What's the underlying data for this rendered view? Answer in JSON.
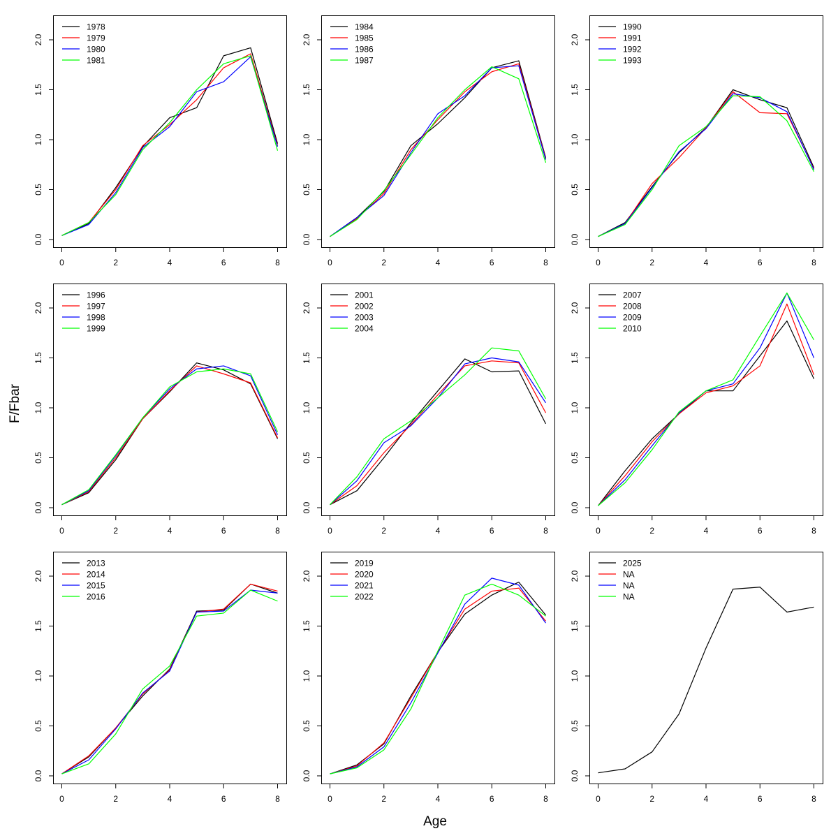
{
  "colors": {
    "black": "#000000",
    "red": "#ff0000",
    "blue": "#0000ff",
    "green": "#00ff00"
  },
  "labels": {
    "xlabel": "Age",
    "ylabel": "F/Fbar"
  },
  "chart_data": [
    {
      "type": "line",
      "x": [
        0,
        1,
        2,
        3,
        4,
        5,
        6,
        7,
        8
      ],
      "xlim": [
        0,
        8
      ],
      "ylim": [
        0,
        2.2
      ],
      "xticks": [
        0,
        2,
        4,
        6,
        8
      ],
      "yticks": [
        "0.0",
        "0.5",
        "1.0",
        "1.5",
        "2.0"
      ],
      "legend_position": "top-left",
      "series": [
        {
          "name": "1978",
          "color": "black",
          "values": [
            0.04,
            0.16,
            0.52,
            0.93,
            1.22,
            1.32,
            1.84,
            1.92,
            0.96
          ]
        },
        {
          "name": "1979",
          "color": "red",
          "values": [
            0.04,
            0.17,
            0.5,
            0.94,
            1.15,
            1.4,
            1.72,
            1.86,
            0.94
          ]
        },
        {
          "name": "1980",
          "color": "blue",
          "values": [
            0.04,
            0.15,
            0.47,
            0.92,
            1.13,
            1.48,
            1.58,
            1.83,
            0.93
          ]
        },
        {
          "name": "1981",
          "color": "green",
          "values": [
            0.04,
            0.17,
            0.45,
            0.9,
            1.17,
            1.5,
            1.76,
            1.84,
            0.89
          ]
        }
      ]
    },
    {
      "type": "line",
      "x": [
        0,
        1,
        2,
        3,
        4,
        5,
        6,
        7,
        8
      ],
      "xlim": [
        0,
        8
      ],
      "ylim": [
        0,
        2.2
      ],
      "xticks": [
        0,
        2,
        4,
        6,
        8
      ],
      "yticks": [
        "0.0",
        "0.5",
        "1.0",
        "1.5",
        "2.0"
      ],
      "legend_position": "top-left",
      "series": [
        {
          "name": "1984",
          "color": "black",
          "values": [
            0.03,
            0.22,
            0.48,
            0.94,
            1.16,
            1.42,
            1.72,
            1.79,
            0.82
          ]
        },
        {
          "name": "1985",
          "color": "red",
          "values": [
            0.03,
            0.21,
            0.46,
            0.9,
            1.2,
            1.48,
            1.68,
            1.76,
            0.81
          ]
        },
        {
          "name": "1986",
          "color": "blue",
          "values": [
            0.03,
            0.22,
            0.44,
            0.87,
            1.26,
            1.44,
            1.72,
            1.74,
            0.8
          ]
        },
        {
          "name": "1987",
          "color": "green",
          "values": [
            0.03,
            0.2,
            0.49,
            0.85,
            1.22,
            1.5,
            1.73,
            1.61,
            0.77
          ]
        }
      ]
    },
    {
      "type": "line",
      "x": [
        0,
        1,
        2,
        3,
        4,
        5,
        6,
        7,
        8
      ],
      "xlim": [
        0,
        8
      ],
      "ylim": [
        0,
        2.2
      ],
      "xticks": [
        0,
        2,
        4,
        6,
        8
      ],
      "yticks": [
        "0.0",
        "0.5",
        "1.0",
        "1.5",
        "2.0"
      ],
      "legend_position": "top-left",
      "series": [
        {
          "name": "1990",
          "color": "black",
          "values": [
            0.03,
            0.17,
            0.53,
            0.87,
            1.12,
            1.5,
            1.4,
            1.32,
            0.72
          ]
        },
        {
          "name": "1991",
          "color": "red",
          "values": [
            0.03,
            0.16,
            0.56,
            0.82,
            1.12,
            1.48,
            1.27,
            1.26,
            0.71
          ]
        },
        {
          "name": "1992",
          "color": "blue",
          "values": [
            0.03,
            0.16,
            0.52,
            0.88,
            1.11,
            1.46,
            1.42,
            1.28,
            0.7
          ]
        },
        {
          "name": "1993",
          "color": "green",
          "values": [
            0.03,
            0.15,
            0.5,
            0.94,
            1.13,
            1.44,
            1.43,
            1.19,
            0.68
          ]
        }
      ]
    },
    {
      "type": "line",
      "x": [
        0,
        1,
        2,
        3,
        4,
        5,
        6,
        7,
        8
      ],
      "xlim": [
        0,
        8
      ],
      "ylim": [
        0,
        2.2
      ],
      "xticks": [
        0,
        2,
        4,
        6,
        8
      ],
      "yticks": [
        "0.0",
        "0.5",
        "1.0",
        "1.5",
        "2.0"
      ],
      "legend_position": "top-left",
      "series": [
        {
          "name": "1996",
          "color": "black",
          "values": [
            0.03,
            0.15,
            0.48,
            0.89,
            1.16,
            1.45,
            1.38,
            1.24,
            0.69
          ]
        },
        {
          "name": "1997",
          "color": "red",
          "values": [
            0.03,
            0.16,
            0.5,
            0.89,
            1.17,
            1.42,
            1.34,
            1.25,
            0.7
          ]
        },
        {
          "name": "1998",
          "color": "blue",
          "values": [
            0.03,
            0.17,
            0.52,
            0.9,
            1.19,
            1.39,
            1.42,
            1.32,
            0.73
          ]
        },
        {
          "name": "1999",
          "color": "green",
          "values": [
            0.03,
            0.18,
            0.53,
            0.9,
            1.21,
            1.36,
            1.39,
            1.34,
            0.76
          ]
        }
      ]
    },
    {
      "type": "line",
      "x": [
        0,
        1,
        2,
        3,
        4,
        5,
        6,
        7,
        8
      ],
      "xlim": [
        0,
        8
      ],
      "ylim": [
        0,
        2.2
      ],
      "xticks": [
        0,
        2,
        4,
        6,
        8
      ],
      "yticks": [
        "0.0",
        "0.5",
        "1.0",
        "1.5",
        "2.0"
      ],
      "legend_position": "top-left",
      "series": [
        {
          "name": "2001",
          "color": "black",
          "values": [
            0.03,
            0.17,
            0.5,
            0.85,
            1.17,
            1.49,
            1.36,
            1.37,
            0.84
          ]
        },
        {
          "name": "2002",
          "color": "red",
          "values": [
            0.03,
            0.22,
            0.55,
            0.83,
            1.13,
            1.42,
            1.47,
            1.45,
            0.95
          ]
        },
        {
          "name": "2003",
          "color": "blue",
          "values": [
            0.03,
            0.27,
            0.65,
            0.82,
            1.1,
            1.44,
            1.5,
            1.46,
            1.05
          ]
        },
        {
          "name": "2004",
          "color": "green",
          "values": [
            0.03,
            0.31,
            0.69,
            0.87,
            1.1,
            1.33,
            1.6,
            1.57,
            1.09
          ]
        }
      ]
    },
    {
      "type": "line",
      "x": [
        0,
        1,
        2,
        3,
        4,
        5,
        6,
        7,
        8
      ],
      "xlim": [
        0,
        8
      ],
      "ylim": [
        0,
        2.2
      ],
      "xticks": [
        0,
        2,
        4,
        6,
        8
      ],
      "yticks": [
        "0.0",
        "0.5",
        "1.0",
        "1.5",
        "2.0"
      ],
      "legend_position": "top-left",
      "series": [
        {
          "name": "2007",
          "color": "black",
          "values": [
            0.02,
            0.37,
            0.69,
            0.94,
            1.17,
            1.17,
            1.52,
            1.87,
            1.29
          ]
        },
        {
          "name": "2008",
          "color": "red",
          "values": [
            0.02,
            0.32,
            0.66,
            0.94,
            1.15,
            1.22,
            1.42,
            2.04,
            1.33
          ]
        },
        {
          "name": "2009",
          "color": "blue",
          "values": [
            0.02,
            0.28,
            0.62,
            0.95,
            1.17,
            1.24,
            1.6,
            2.15,
            1.5
          ]
        },
        {
          "name": "2010",
          "color": "green",
          "values": [
            0.02,
            0.25,
            0.58,
            0.96,
            1.17,
            1.28,
            1.72,
            2.15,
            1.68
          ]
        }
      ]
    },
    {
      "type": "line",
      "x": [
        0,
        1,
        2,
        3,
        4,
        5,
        6,
        7,
        8
      ],
      "xlim": [
        0,
        8
      ],
      "ylim": [
        0,
        2.2
      ],
      "xticks": [
        0,
        2,
        4,
        6,
        8
      ],
      "yticks": [
        "0.0",
        "0.5",
        "1.0",
        "1.5",
        "2.0"
      ],
      "legend_position": "top-left",
      "series": [
        {
          "name": "2013",
          "color": "black",
          "values": [
            0.02,
            0.19,
            0.48,
            0.8,
            1.07,
            1.65,
            1.66,
            1.92,
            1.83
          ]
        },
        {
          "name": "2014",
          "color": "red",
          "values": [
            0.02,
            0.2,
            0.48,
            0.82,
            1.06,
            1.64,
            1.67,
            1.92,
            1.85
          ]
        },
        {
          "name": "2015",
          "color": "blue",
          "values": [
            0.02,
            0.16,
            0.47,
            0.83,
            1.05,
            1.64,
            1.65,
            1.86,
            1.83
          ]
        },
        {
          "name": "2016",
          "color": "green",
          "values": [
            0.02,
            0.12,
            0.42,
            0.87,
            1.1,
            1.6,
            1.63,
            1.86,
            1.75
          ]
        }
      ]
    },
    {
      "type": "line",
      "x": [
        0,
        1,
        2,
        3,
        4,
        5,
        6,
        7,
        8
      ],
      "xlim": [
        0,
        8
      ],
      "ylim": [
        0,
        2.2
      ],
      "xticks": [
        0,
        2,
        4,
        6,
        8
      ],
      "yticks": [
        "0.0",
        "0.5",
        "1.0",
        "1.5",
        "2.0"
      ],
      "legend_position": "top-left",
      "series": [
        {
          "name": "2019",
          "color": "black",
          "values": [
            0.02,
            0.11,
            0.32,
            0.8,
            1.24,
            1.62,
            1.81,
            1.94,
            1.61
          ]
        },
        {
          "name": "2020",
          "color": "red",
          "values": [
            0.02,
            0.1,
            0.33,
            0.78,
            1.24,
            1.67,
            1.85,
            1.88,
            1.55
          ]
        },
        {
          "name": "2021",
          "color": "blue",
          "values": [
            0.02,
            0.09,
            0.29,
            0.73,
            1.23,
            1.72,
            1.98,
            1.91,
            1.53
          ]
        },
        {
          "name": "2022",
          "color": "green",
          "values": [
            0.02,
            0.08,
            0.26,
            0.67,
            1.25,
            1.81,
            1.92,
            1.81,
            1.6
          ]
        }
      ]
    },
    {
      "type": "line",
      "x": [
        0,
        1,
        2,
        3,
        4,
        5,
        6,
        7,
        8
      ],
      "xlim": [
        0,
        8
      ],
      "ylim": [
        0,
        2.2
      ],
      "xticks": [
        0,
        2,
        4,
        6,
        8
      ],
      "yticks": [
        "0.0",
        "0.5",
        "1.0",
        "1.5",
        "2.0"
      ],
      "legend_position": "top-left",
      "legend_extra": [
        "NA",
        "NA",
        "NA"
      ],
      "series": [
        {
          "name": "2025",
          "color": "black",
          "values": [
            0.03,
            0.07,
            0.24,
            0.62,
            1.28,
            1.87,
            1.89,
            1.64,
            1.69
          ]
        }
      ]
    }
  ]
}
